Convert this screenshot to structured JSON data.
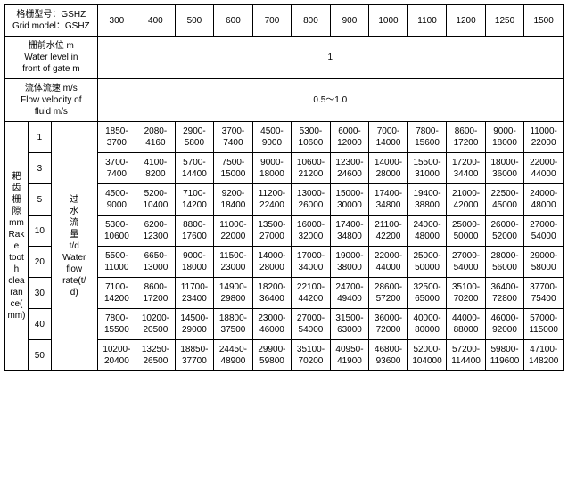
{
  "header_labels": {
    "grid_model_cn": "格栅型号：GSHZ",
    "grid_model_en": "Grid model：GSHZ",
    "water_level_cn": "栅前水位 m",
    "water_level_en1": "Water level in",
    "water_level_en2": "front of gate m",
    "flow_velocity_cn": "流体流速 m/s",
    "flow_velocity_en1": "Flow velocity of",
    "flow_velocity_en2": "fluid m/s",
    "rake_cn1": "耙",
    "rake_cn2": "齿",
    "rake_cn3": "栅",
    "rake_cn4": "隙",
    "rake_unit": "mm",
    "rake_en1": "Rake",
    "rake_en2": "tooth",
    "rake_en3": "clearan",
    "rake_en4": "ce(mm)",
    "water_flow_cn1": "过",
    "water_flow_cn2": "水",
    "water_flow_cn3": "流",
    "water_flow_cn4": "量",
    "water_flow_cn5": "t/d",
    "water_flow_en1": "Water",
    "water_flow_en2": "flow",
    "water_flow_en3": "rate(t/",
    "water_flow_en4": "d)"
  },
  "model_cols": [
    "300",
    "400",
    "500",
    "600",
    "700",
    "800",
    "900",
    "1000",
    "1100",
    "1200",
    "1250",
    "1500"
  ],
  "water_level_val": "1",
  "flow_velocity_val": "0.5～1.0",
  "clearance_rows": [
    "1",
    "3",
    "5",
    "10",
    "20",
    "30",
    "40",
    "50"
  ],
  "data": [
    [
      "1850-3700",
      "2080-4160",
      "2900-5800",
      "3700-7400",
      "4500-9000",
      "5300-10600",
      "6000-12000",
      "7000-14000",
      "7800-15600",
      "8600-17200",
      "9000-18000",
      "11000-22000"
    ],
    [
      "3700-7400",
      "4100-8200",
      "5700-14400",
      "7500-15000",
      "9000-18000",
      "10600-21200",
      "12300-24600",
      "14000-28000",
      "15500-31000",
      "17200-34400",
      "18000-36000",
      "22000-44000"
    ],
    [
      "4500-9000",
      "5200-10400",
      "7100-14200",
      "9200-18400",
      "11200-22400",
      "13000-26000",
      "15000-30000",
      "17400-34800",
      "19400-38800",
      "21000-42000",
      "22500-45000",
      "24000-48000"
    ],
    [
      "5300-10600",
      "6200-12300",
      "8800-17600",
      "11000-22000",
      "13500-27000",
      "16000-32000",
      "17400-34800",
      "21100-42200",
      "24000-48000",
      "25000-50000",
      "26000-52000",
      "27000-54000"
    ],
    [
      "5500-11000",
      "6650-13000",
      "9000-18000",
      "11500-23000",
      "14000-28000",
      "17000-34000",
      "19000-38000",
      "22000-44000",
      "25000-50000",
      "27000-54000",
      "28000-56000",
      "29000-58000"
    ],
    [
      "7100-14200",
      "8600-17200",
      "11700-23400",
      "14900-29800",
      "18200-36400",
      "22100-44200",
      "24700-49400",
      "28600-57200",
      "32500-65000",
      "35100-70200",
      "36400-72800",
      "37700-75400"
    ],
    [
      "7800-15500",
      "10200-20500",
      "14500-29000",
      "18800-37500",
      "23000-46000",
      "27000-54000",
      "31500-63000",
      "36000-72000",
      "40000-80000",
      "44000-88000",
      "46000-92000",
      "57000-115000"
    ],
    [
      "10200-20400",
      "13250-26500",
      "18850-37700",
      "24450-48900",
      "29900-59800",
      "35100-70200",
      "40950-41900",
      "46800-93600",
      "52000-104000",
      "57200-114400",
      "59800-119600",
      "47100-148200"
    ]
  ],
  "colors": {
    "border": "#000000",
    "background": "#ffffff",
    "text": "#000000"
  },
  "fontsize": 10
}
